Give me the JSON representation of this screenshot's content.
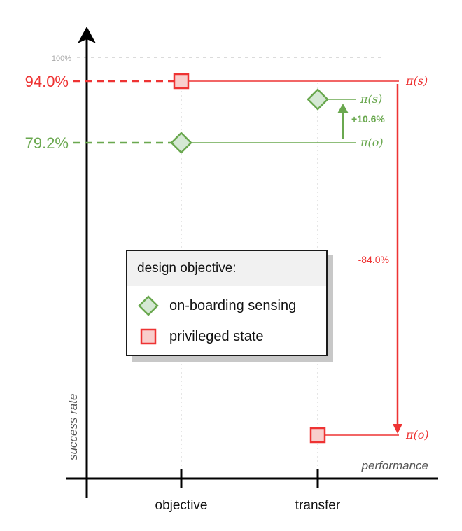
{
  "chart_data": {
    "type": "scatter",
    "categories": [
      "objective",
      "transfer"
    ],
    "xlabel": "performance",
    "ylabel": "success rate",
    "ylim": [
      0,
      100
    ],
    "top_gridline_label": "100%",
    "series": [
      {
        "name": "on-boarding sensing",
        "color": "#6aa84f",
        "fill": "#d5e8d4",
        "marker": "diamond",
        "values": [
          79.2,
          89.8
        ],
        "objective_label": "79.2%",
        "transfer_lines": [
          {
            "label": "π(s)",
            "value": 89.8
          },
          {
            "label": "π(o)",
            "value": 79.2
          }
        ],
        "change_label": "+10.6%"
      },
      {
        "name": "privileged state",
        "color": "#ee3333",
        "fill": "#f8cecc",
        "marker": "square",
        "values": [
          94.0,
          10.0
        ],
        "objective_label": "94.0%",
        "transfer_lines": [
          {
            "label": "π(s)",
            "value": 94.0
          },
          {
            "label": "π(o)",
            "value": 10.0
          }
        ],
        "change_label": "-84.0%"
      }
    ],
    "legend": {
      "title": "design objective:",
      "items": [
        "on-boarding sensing",
        "privileged state"
      ],
      "placement": "center"
    }
  }
}
